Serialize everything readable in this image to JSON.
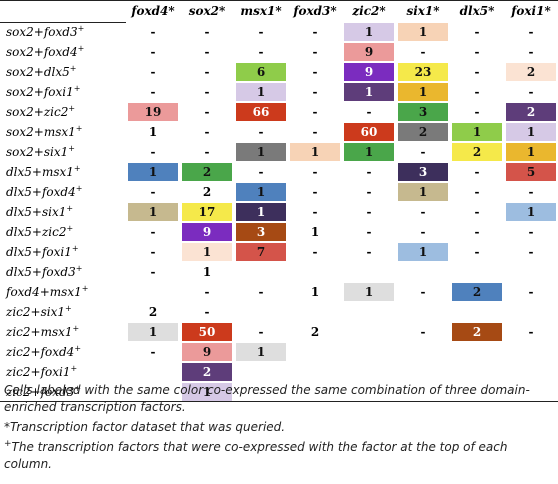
{
  "table": {
    "columns": [
      {
        "label": "foxd4",
        "mark": "*"
      },
      {
        "label": "sox2",
        "mark": "*"
      },
      {
        "label": "msx1",
        "mark": "*"
      },
      {
        "label": "foxd3",
        "mark": "*"
      },
      {
        "label": "zic2",
        "mark": "*"
      },
      {
        "label": "six1",
        "mark": "*"
      },
      {
        "label": "dlx5",
        "mark": "*"
      },
      {
        "label": "foxi1",
        "mark": "*"
      }
    ],
    "rows": [
      {
        "label": "sox2+foxd3",
        "sup": "+",
        "cells": [
          {
            "v": "-",
            "c": ""
          },
          {
            "v": "-",
            "c": ""
          },
          {
            "v": "-",
            "c": ""
          },
          {
            "v": "-",
            "c": ""
          },
          {
            "v": "1",
            "c": "#d6c9e6"
          },
          {
            "v": "1",
            "c": "#f7d3b6"
          },
          {
            "v": "-",
            "c": ""
          },
          {
            "v": "-",
            "c": ""
          }
        ]
      },
      {
        "label": "sox2+foxd4",
        "sup": "+",
        "cells": [
          {
            "v": "-",
            "c": ""
          },
          {
            "v": "-",
            "c": ""
          },
          {
            "v": "-",
            "c": ""
          },
          {
            "v": "-",
            "c": ""
          },
          {
            "v": "9",
            "c": "#eb9a9a"
          },
          {
            "v": "-",
            "c": ""
          },
          {
            "v": "-",
            "c": ""
          },
          {
            "v": "-",
            "c": ""
          }
        ]
      },
      {
        "label": "sox2+dlx5",
        "sup": "+",
        "cells": [
          {
            "v": "-",
            "c": ""
          },
          {
            "v": "-",
            "c": ""
          },
          {
            "v": "6",
            "c": "#8fcc4a"
          },
          {
            "v": "-",
            "c": ""
          },
          {
            "v": "9",
            "c": "#7b2cbf"
          },
          {
            "v": "23",
            "c": "#f5e94a"
          },
          {
            "v": "-",
            "c": ""
          },
          {
            "v": "2",
            "c": "#fbe3d3"
          }
        ]
      },
      {
        "label": "sox2+foxi1",
        "sup": "+",
        "cells": [
          {
            "v": "-",
            "c": ""
          },
          {
            "v": "-",
            "c": ""
          },
          {
            "v": "1",
            "c": "#d6c9e6"
          },
          {
            "v": "-",
            "c": ""
          },
          {
            "v": "1",
            "c": "#5e3d7a"
          },
          {
            "v": "1",
            "c": "#eab72e"
          },
          {
            "v": "-",
            "c": ""
          },
          {
            "v": "-",
            "c": ""
          }
        ]
      },
      {
        "label": "sox2+zic2",
        "sup": "+",
        "cells": [
          {
            "v": "19",
            "c": "#eb9a9a"
          },
          {
            "v": "-",
            "c": ""
          },
          {
            "v": "66",
            "c": "#cc3a1c"
          },
          {
            "v": "-",
            "c": ""
          },
          {
            "v": "-",
            "c": ""
          },
          {
            "v": "3",
            "c": "#4aa64a"
          },
          {
            "v": "-",
            "c": ""
          },
          {
            "v": "2",
            "c": "#5e3d7a"
          }
        ]
      },
      {
        "label": "sox2+msx1",
        "sup": "+",
        "cells": [
          {
            "v": "1",
            "c": ""
          },
          {
            "v": "-",
            "c": ""
          },
          {
            "v": "-",
            "c": ""
          },
          {
            "v": "-",
            "c": ""
          },
          {
            "v": "60",
            "c": "#cc3a1c"
          },
          {
            "v": "2",
            "c": "#7a7a7a"
          },
          {
            "v": "1",
            "c": "#8fcc4a"
          },
          {
            "v": "1",
            "c": "#d6c9e6"
          }
        ]
      },
      {
        "label": "sox2+six1",
        "sup": "+",
        "cells": [
          {
            "v": "-",
            "c": ""
          },
          {
            "v": "-",
            "c": ""
          },
          {
            "v": "1",
            "c": "#7a7a7a"
          },
          {
            "v": "1",
            "c": "#f7d3b6"
          },
          {
            "v": "1",
            "c": "#4aa64a"
          },
          {
            "v": "-",
            "c": ""
          },
          {
            "v": "2",
            "c": "#f5e94a"
          },
          {
            "v": "1",
            "c": "#eab72e"
          }
        ]
      },
      {
        "label": "dlx5+msx1",
        "sup": "+",
        "cells": [
          {
            "v": "1",
            "c": "#4f81bd"
          },
          {
            "v": "2",
            "c": "#4aa64a"
          },
          {
            "v": "-",
            "c": ""
          },
          {
            "v": "-",
            "c": ""
          },
          {
            "v": "-",
            "c": ""
          },
          {
            "v": "3",
            "c": "#3d2f5c"
          },
          {
            "v": "-",
            "c": ""
          },
          {
            "v": "5",
            "c": "#d4544a"
          }
        ]
      },
      {
        "label": "dlx5+foxd4",
        "sup": "+",
        "cells": [
          {
            "v": "-",
            "c": ""
          },
          {
            "v": "2",
            "c": ""
          },
          {
            "v": "1",
            "c": "#4f81bd"
          },
          {
            "v": "-",
            "c": ""
          },
          {
            "v": "-",
            "c": ""
          },
          {
            "v": "1",
            "c": "#c6b98f"
          },
          {
            "v": "-",
            "c": ""
          },
          {
            "v": "-",
            "c": ""
          }
        ]
      },
      {
        "label": "dlx5+six1",
        "sup": "+",
        "cells": [
          {
            "v": "1",
            "c": "#c6b98f"
          },
          {
            "v": "17",
            "c": "#f5e94a"
          },
          {
            "v": "1",
            "c": "#3d2f5c"
          },
          {
            "v": "-",
            "c": ""
          },
          {
            "v": "-",
            "c": ""
          },
          {
            "v": "-",
            "c": ""
          },
          {
            "v": "-",
            "c": ""
          },
          {
            "v": "1",
            "c": "#9dbde0"
          }
        ]
      },
      {
        "label": "dlx5+zic2",
        "sup": "+",
        "cells": [
          {
            "v": "-",
            "c": ""
          },
          {
            "v": "9",
            "c": "#7b2cbf"
          },
          {
            "v": "3",
            "c": "#a64a14"
          },
          {
            "v": "1",
            "c": ""
          },
          {
            "v": "-",
            "c": ""
          },
          {
            "v": "-",
            "c": ""
          },
          {
            "v": "-",
            "c": ""
          },
          {
            "v": "-",
            "c": ""
          }
        ]
      },
      {
        "label": "dlx5+foxi1",
        "sup": "+",
        "cells": [
          {
            "v": "-",
            "c": ""
          },
          {
            "v": "1",
            "c": "#fbe3d3"
          },
          {
            "v": "7",
            "c": "#d4544a"
          },
          {
            "v": "-",
            "c": ""
          },
          {
            "v": "-",
            "c": ""
          },
          {
            "v": "1",
            "c": "#9dbde0"
          },
          {
            "v": "-",
            "c": ""
          },
          {
            "v": "-",
            "c": ""
          }
        ]
      },
      {
        "label": "dlx5+foxd3",
        "sup": "+",
        "cells": [
          {
            "v": "-",
            "c": ""
          },
          {
            "v": "1",
            "c": ""
          },
          {
            "v": "",
            "c": ""
          },
          {
            "v": "",
            "c": ""
          },
          {
            "v": "",
            "c": ""
          },
          {
            "v": "",
            "c": ""
          },
          {
            "v": "",
            "c": ""
          },
          {
            "v": "",
            "c": ""
          }
        ]
      },
      {
        "label": "foxd4+msx1",
        "sup": "+",
        "cells": [
          {
            "v": "",
            "c": ""
          },
          {
            "v": "-",
            "c": ""
          },
          {
            "v": "-",
            "c": ""
          },
          {
            "v": "1",
            "c": ""
          },
          {
            "v": "1",
            "c": "#dedede"
          },
          {
            "v": "-",
            "c": ""
          },
          {
            "v": "2",
            "c": "#4f81bd"
          },
          {
            "v": "-",
            "c": ""
          }
        ]
      },
      {
        "label": "zic2+six1",
        "sup": "+",
        "cells": [
          {
            "v": "2",
            "c": ""
          },
          {
            "v": "-",
            "c": ""
          },
          {
            "v": "",
            "c": ""
          },
          {
            "v": "",
            "c": ""
          },
          {
            "v": "",
            "c": ""
          },
          {
            "v": "",
            "c": ""
          },
          {
            "v": "",
            "c": ""
          },
          {
            "v": "",
            "c": ""
          }
        ]
      },
      {
        "label": "zic2+msx1",
        "sup": "+",
        "cells": [
          {
            "v": "1",
            "c": "#dedede"
          },
          {
            "v": "50",
            "c": "#cc3a1c"
          },
          {
            "v": "-",
            "c": ""
          },
          {
            "v": "2",
            "c": ""
          },
          {
            "v": "",
            "c": ""
          },
          {
            "v": "-",
            "c": ""
          },
          {
            "v": "2",
            "c": "#a64a14"
          },
          {
            "v": "-",
            "c": ""
          }
        ]
      },
      {
        "label": "zic2+foxd4",
        "sup": "+",
        "cells": [
          {
            "v": "-",
            "c": ""
          },
          {
            "v": "9",
            "c": "#eb9a9a"
          },
          {
            "v": "1",
            "c": "#dedede"
          },
          {
            "v": "",
            "c": ""
          },
          {
            "v": "",
            "c": ""
          },
          {
            "v": "",
            "c": ""
          },
          {
            "v": "",
            "c": ""
          },
          {
            "v": "",
            "c": ""
          }
        ]
      },
      {
        "label": "zic2+foxi1",
        "sup": "+",
        "cells": [
          {
            "v": "",
            "c": ""
          },
          {
            "v": "2",
            "c": "#5e3d7a"
          },
          {
            "v": "",
            "c": ""
          },
          {
            "v": "",
            "c": ""
          },
          {
            "v": "",
            "c": ""
          },
          {
            "v": "",
            "c": ""
          },
          {
            "v": "",
            "c": ""
          },
          {
            "v": "",
            "c": ""
          }
        ]
      },
      {
        "label": "zic2+foxd3",
        "sup": "+",
        "cells": [
          {
            "v": "",
            "c": ""
          },
          {
            "v": "1",
            "c": "#d6c9e6"
          },
          {
            "v": "",
            "c": ""
          },
          {
            "v": "",
            "c": ""
          },
          {
            "v": "",
            "c": ""
          },
          {
            "v": "",
            "c": ""
          },
          {
            "v": "",
            "c": ""
          },
          {
            "v": "",
            "c": ""
          }
        ]
      }
    ]
  },
  "footnotes": {
    "note1": "Cells labeled with the same color co-expressed the same combination of three domain-enriched transcription factors.",
    "note2": "*Transcription factor dataset that was queried.",
    "note3_sup": "+",
    "note3": "The transcription factors that were co-expressed with the factor at the top of each column."
  }
}
